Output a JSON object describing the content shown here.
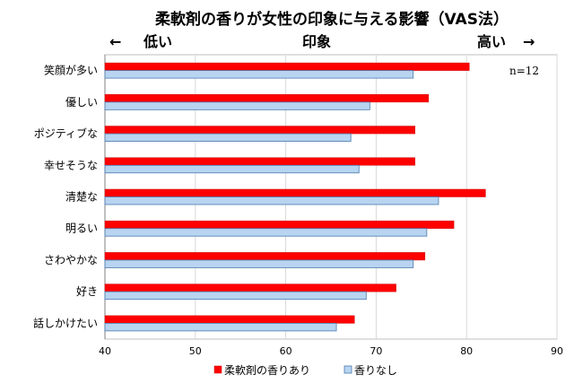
{
  "chart_data": {
    "type": "bar",
    "orientation": "horizontal",
    "title": "柔軟剤の香りが女性の印象に与える影響（VAS法）",
    "scale_label": {
      "left_arrow": "←",
      "left": "低い",
      "center": "印象",
      "right": "高い",
      "right_arrow": "→"
    },
    "note": "n=12",
    "categories": [
      "笑顔が多い",
      "優しい",
      "ポジティブな",
      "幸せそうな",
      "清楚な",
      "明るい",
      "さわやかな",
      "好き",
      "話しかけたい"
    ],
    "series": [
      {
        "name": "柔軟剤の香りあり",
        "color": "#ff0000",
        "values": [
          80.3,
          75.8,
          74.3,
          74.3,
          82.1,
          78.6,
          75.4,
          72.2,
          67.6
        ]
      },
      {
        "name": "香りなし",
        "color": "#b8d4f0",
        "values": [
          74.1,
          69.3,
          67.2,
          68.1,
          76.9,
          75.6,
          74.1,
          68.9,
          65.6
        ]
      }
    ],
    "xlim": [
      40,
      90
    ],
    "xticks": [
      40,
      50,
      60,
      70,
      80,
      90
    ],
    "grid": true,
    "legend": "bottom"
  }
}
